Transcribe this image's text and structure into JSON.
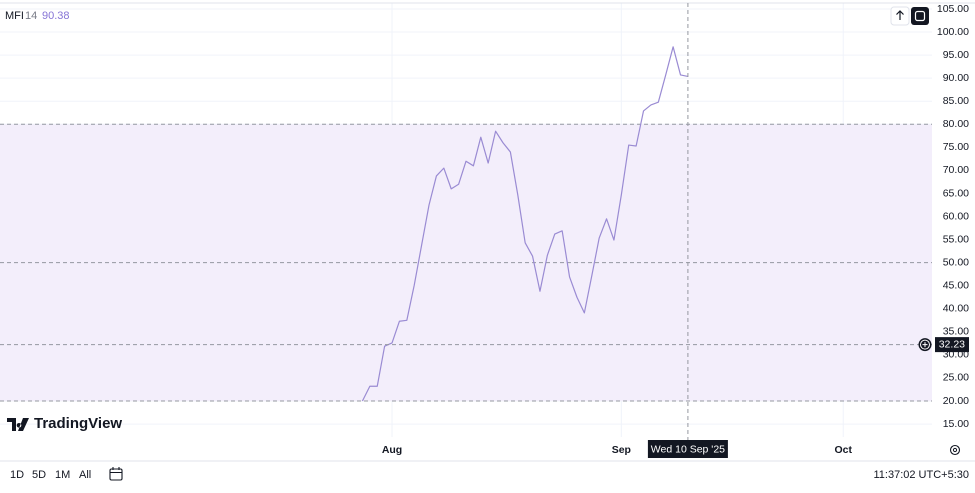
{
  "chart_data": {
    "type": "line",
    "header": {
      "name": "MFI",
      "length": "14"
    },
    "x": [
      "2025-07-28",
      "2025-07-29",
      "2025-07-30",
      "2025-07-31",
      "2025-08-01",
      "2025-08-02",
      "2025-08-03",
      "2025-08-04",
      "2025-08-05",
      "2025-08-06",
      "2025-08-07",
      "2025-08-08",
      "2025-08-09",
      "2025-08-10",
      "2025-08-11",
      "2025-08-12",
      "2025-08-13",
      "2025-08-14",
      "2025-08-15",
      "2025-08-16",
      "2025-08-17",
      "2025-08-18",
      "2025-08-19",
      "2025-08-20",
      "2025-08-21",
      "2025-08-22",
      "2025-08-23",
      "2025-08-24",
      "2025-08-25",
      "2025-08-26",
      "2025-08-27",
      "2025-08-28",
      "2025-08-29",
      "2025-08-30",
      "2025-08-31",
      "2025-09-01",
      "2025-09-02",
      "2025-09-03",
      "2025-09-04",
      "2025-09-05",
      "2025-09-06",
      "2025-09-07",
      "2025-09-08",
      "2025-09-09",
      "2025-09-10"
    ],
    "series": [
      {
        "name": "MFI",
        "color": "#9a8bd3",
        "value_color": "#8674d6",
        "values": [
          20,
          23.2,
          23.2,
          31.9,
          32.6,
          37.3,
          37.5,
          45.1,
          53.8,
          62.5,
          68.8,
          70.5,
          66,
          67,
          72,
          71,
          77.2,
          71.6,
          78.5,
          76,
          74,
          64.7,
          54.3,
          51.4,
          43.8,
          51.6,
          56.2,
          56.9,
          46.9,
          42.5,
          39.1,
          47.1,
          55.3,
          59.5,
          54.9,
          64.7,
          75.5,
          75.3,
          82.9,
          84.2,
          84.8,
          90.7,
          96.8,
          90.7,
          90.38
        ]
      }
    ],
    "xlim": [
      "2025-06-09",
      "2025-10-13"
    ],
    "xticks": [
      {
        "value": "2025-08-01",
        "label": "Aug"
      },
      {
        "value": "2025-09-01",
        "label": "Sep"
      },
      {
        "value": "2025-10-01",
        "label": "Oct"
      }
    ],
    "ylim": [
      12.2,
      106.3
    ],
    "yticks": [
      {
        "value": 15,
        "label": "15.00"
      },
      {
        "value": 20,
        "label": "20.00"
      },
      {
        "value": 25,
        "label": "25.00"
      },
      {
        "value": 30,
        "label": "30.00"
      },
      {
        "value": 35,
        "label": "35.00"
      },
      {
        "value": 40,
        "label": "40.00"
      },
      {
        "value": 45,
        "label": "45.00"
      },
      {
        "value": 50,
        "label": "50.00"
      },
      {
        "value": 55,
        "label": "55.00"
      },
      {
        "value": 60,
        "label": "60.00"
      },
      {
        "value": 65,
        "label": "65.00"
      },
      {
        "value": 70,
        "label": "70.00"
      },
      {
        "value": 75,
        "label": "75.00"
      },
      {
        "value": 80,
        "label": "80.00"
      },
      {
        "value": 85,
        "label": "85.00"
      },
      {
        "value": 90,
        "label": "90.00"
      },
      {
        "value": 95,
        "label": "95.00"
      },
      {
        "value": 100,
        "label": "100.00"
      },
      {
        "value": 105,
        "label": "105.00"
      }
    ],
    "grid": true,
    "bands": {
      "upper": 80,
      "middle": 50,
      "lower": 20,
      "fill": "#f3eefb",
      "line_color": "#9598a1"
    },
    "crosshair": {
      "x": "2025-09-10",
      "x_label": "Wed 10 Sep '25",
      "y": 32.23
    },
    "brand": "TradingView",
    "toolbar": {
      "ranges": [
        "1D",
        "5D",
        "1M",
        "All"
      ],
      "clock": "11:37:02 UTC+5:30"
    }
  }
}
